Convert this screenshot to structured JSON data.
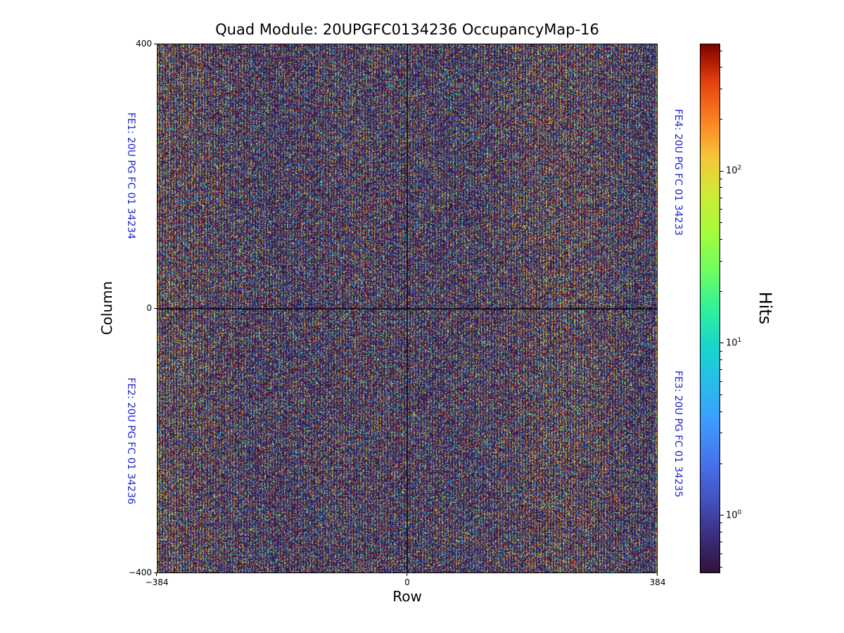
{
  "chart_data": {
    "type": "heatmap",
    "title": "Quad Module: 20UPGFC0134236 OccupancyMap-16",
    "xlabel": "Row",
    "ylabel": "Column",
    "xlim": [
      -384,
      384
    ],
    "ylim": [
      -400,
      400
    ],
    "x_tick_values": [
      -384,
      0,
      384
    ],
    "x_tick_labels": [
      "−384",
      "0",
      "384"
    ],
    "y_tick_values": [
      400,
      0,
      -400
    ],
    "y_tick_labels": [
      "400",
      "0",
      "−400"
    ],
    "grid": false,
    "legend": "none",
    "colorbar": {
      "label": "Hits",
      "scale": "log",
      "vmin": 0.47,
      "vmax": 550,
      "major_ticks": [
        {
          "value": 100,
          "base": "10",
          "exp": "2"
        },
        {
          "value": 10,
          "base": "10",
          "exp": "1"
        },
        {
          "value": 1,
          "base": "10",
          "exp": "0"
        }
      ]
    },
    "colormap": {
      "name": "turbo",
      "stops": [
        {
          "pos": 0.0,
          "color": "#30123b"
        },
        {
          "pos": 0.071,
          "color": "#3b2f80"
        },
        {
          "pos": 0.143,
          "color": "#4454c4"
        },
        {
          "pos": 0.214,
          "color": "#4675ed"
        },
        {
          "pos": 0.286,
          "color": "#3e9bfe"
        },
        {
          "pos": 0.357,
          "color": "#28bceb"
        },
        {
          "pos": 0.429,
          "color": "#18d6cb"
        },
        {
          "pos": 0.5,
          "color": "#31f199"
        },
        {
          "pos": 0.571,
          "color": "#6ffd62"
        },
        {
          "pos": 0.643,
          "color": "#a4fc3c"
        },
        {
          "pos": 0.714,
          "color": "#cdec34"
        },
        {
          "pos": 0.786,
          "color": "#f3c63a"
        },
        {
          "pos": 0.857,
          "color": "#fb8022"
        },
        {
          "pos": 0.929,
          "color": "#e2420f"
        },
        {
          "pos": 0.964,
          "color": "#b81e02"
        },
        {
          "pos": 1.0,
          "color": "#7a0403"
        }
      ]
    },
    "annotation_color": "#2222cc",
    "annotations": [
      {
        "id": "FE1",
        "text": "FE1: 20U PG FC 01 34234",
        "side": "left",
        "quadrant": "top"
      },
      {
        "id": "FE2",
        "text": "FE2: 20U PG FC 01 34236",
        "side": "left",
        "quadrant": "bottom"
      },
      {
        "id": "FE3",
        "text": "FE3: 20U PG FC 01 34235",
        "side": "right",
        "quadrant": "bottom"
      },
      {
        "id": "FE4",
        "text": "FE4: 20U PG FC 01 34233",
        "side": "right",
        "quadrant": "top"
      }
    ],
    "data_description": "Per-pixel hit-count occupancy map of a quad pixel module (4 front-end chips, FE1–FE4). Pixel matrix spans Row −384…384 and Column −400…400. Hit counts form a dense quasi-random speckle pattern on a log color scale (~0.5 to ~550 hits), dominated by warm (≈100–300 hit) pixels arranged in vertical column stripes on a dark low-occupancy background, with dark seam lines between chip quadrants at Row = 0 and Column = 0.",
    "render": {
      "seed": 134236,
      "stripe_period": 4,
      "warm_fraction_bright": 0.4,
      "warm_fraction_dark": 0.1,
      "mid_fraction_bright": 0.25,
      "mid_fraction_dark": 0.12
    }
  }
}
